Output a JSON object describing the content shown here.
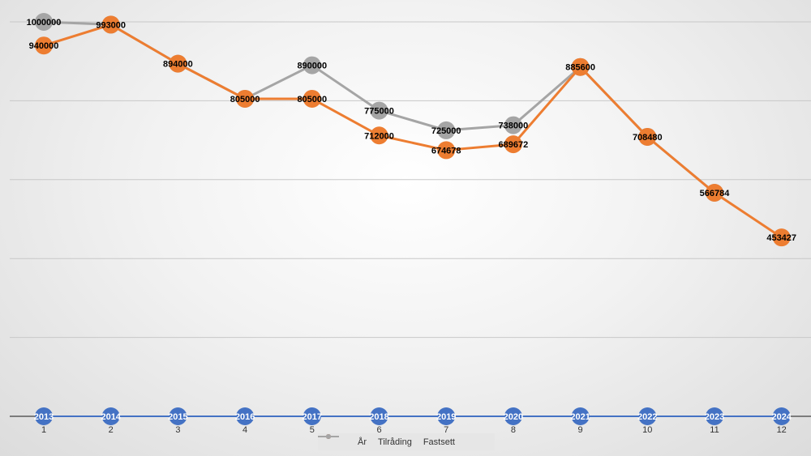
{
  "chart_data": {
    "type": "line",
    "x": [
      1,
      2,
      3,
      4,
      5,
      6,
      7,
      8,
      9,
      10,
      11,
      12
    ],
    "ylim": [
      0,
      1000000
    ],
    "grid": true,
    "legend_position": "bottom",
    "series": [
      {
        "name": "År",
        "color": "#4472c4",
        "values": [
          2013,
          2014,
          2015,
          2016,
          2017,
          2018,
          2019,
          2020,
          2021,
          2022,
          2023,
          2024
        ],
        "labels": [
          2013,
          2014,
          2015,
          2016,
          2017,
          2018,
          2019,
          2020,
          2021,
          2022,
          2023,
          2024
        ]
      },
      {
        "name": "Tilråding",
        "color": "#ed7d31",
        "values": [
          940000,
          993000,
          894000,
          805000,
          805000,
          712000,
          674678,
          689672,
          885600,
          708480,
          566784,
          453427
        ],
        "labels": [
          940000,
          null,
          null,
          null,
          805000,
          712000,
          674678,
          689672,
          null,
          null,
          null,
          453427
        ]
      },
      {
        "name": "Fastsett",
        "color": "#a5a5a5",
        "values": [
          1000000,
          993000,
          894000,
          805000,
          890000,
          775000,
          725000,
          738000,
          885600,
          708480,
          566784,
          null
        ],
        "labels": [
          1000000,
          993000,
          894000,
          805000,
          890000,
          775000,
          725000,
          738000,
          885600,
          708480,
          566784,
          null
        ]
      }
    ]
  }
}
